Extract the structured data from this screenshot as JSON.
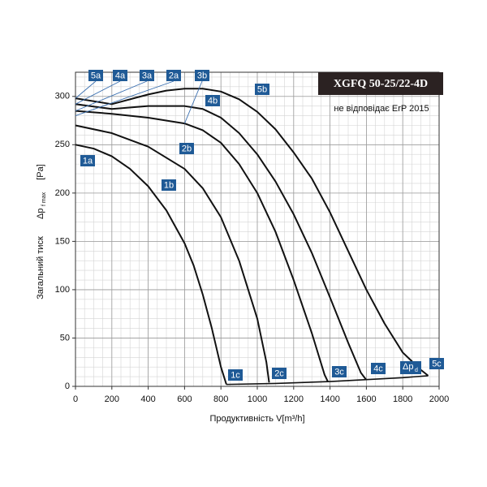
{
  "chart_data": {
    "type": "line",
    "title": "XGFQ 50-25/22-4D",
    "note": "не відповідає ErP 2015",
    "x_label": "Продуктивність V[m³/h]",
    "y_label": "Загальний тиск",
    "y_symbol": "Δp",
    "y_symbol_sub": "f max",
    "y_unit": "[Pa]",
    "xlim": [
      0,
      2000
    ],
    "ylim": [
      0,
      325
    ],
    "xticks": [
      0,
      200,
      400,
      600,
      800,
      1000,
      1200,
      1400,
      1600,
      1800,
      2000
    ],
    "yticks": [
      0,
      50,
      100,
      150,
      200,
      250,
      300
    ],
    "grid": true,
    "series": [
      {
        "color": "#111111",
        "x": [
          0,
          100,
          200,
          300,
          400,
          500,
          600,
          650,
          700,
          750,
          800,
          830
        ],
        "values": [
          250,
          246,
          238,
          225,
          207,
          182,
          148,
          125,
          95,
          60,
          20,
          2
        ]
      },
      {
        "color": "#111111",
        "x": [
          0,
          200,
          400,
          600,
          700,
          800,
          900,
          1000,
          1050,
          1065
        ],
        "values": [
          270,
          262,
          248,
          225,
          205,
          175,
          130,
          70,
          25,
          4
        ]
      },
      {
        "color": "#111111",
        "x": [
          0,
          200,
          400,
          600,
          700,
          800,
          900,
          1000,
          1100,
          1200,
          1300,
          1370,
          1388
        ],
        "values": [
          285,
          282,
          278,
          272,
          265,
          252,
          230,
          200,
          160,
          110,
          55,
          12,
          5
        ]
      },
      {
        "color": "#111111",
        "x": [
          0,
          200,
          400,
          600,
          700,
          800,
          900,
          1000,
          1100,
          1200,
          1300,
          1400,
          1500,
          1570,
          1598
        ],
        "values": [
          292,
          287,
          290,
          290,
          287,
          278,
          262,
          240,
          212,
          178,
          138,
          92,
          45,
          14,
          7
        ]
      },
      {
        "color": "#111111",
        "x": [
          0,
          200,
          400,
          500,
          600,
          700,
          800,
          900,
          1000,
          1100,
          1200,
          1300,
          1400,
          1500,
          1600,
          1700,
          1800,
          1900,
          1940
        ],
        "values": [
          298,
          292,
          302,
          306,
          308,
          308,
          305,
          297,
          284,
          266,
          242,
          215,
          180,
          140,
          100,
          65,
          35,
          17,
          11
        ]
      },
      {
        "color": "#111111",
        "x": [
          830,
          1100,
          1400,
          1600,
          1800,
          1940
        ],
        "values": [
          2,
          3,
          5,
          7,
          9,
          11
        ]
      }
    ],
    "annotations": [
      "5a",
      "4a",
      "3a",
      "2a",
      "3b",
      "5b",
      "4b",
      "2b",
      "1a",
      "1b",
      "1c",
      "2c",
      "3c",
      "4c",
      "5c"
    ],
    "system_label": "Δp",
    "system_label_sub": "d"
  }
}
